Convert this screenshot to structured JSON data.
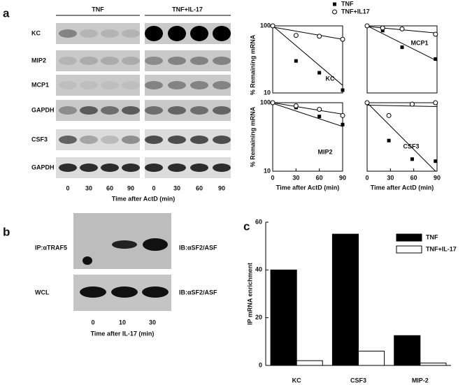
{
  "panel_labels": [
    "a",
    "b",
    "c"
  ],
  "blot_a": {
    "groups": [
      "TNF",
      "TNF+IL-17"
    ],
    "rows": [
      "KC",
      "MIP2",
      "MCP1",
      "GAPDH",
      "CSF3",
      "GAPDH"
    ],
    "lanes": [
      "0",
      "30",
      "60",
      "90",
      "0",
      "30",
      "60",
      "90"
    ],
    "xlabel": "Time after ActD (min)"
  },
  "blot_b": {
    "left_labels": [
      "IP:αTRAF5",
      "WCL"
    ],
    "right_labels": [
      "IB:αSF2/ASF",
      "IB:αSF2/ASF"
    ],
    "lanes": [
      "0",
      "10",
      "30"
    ],
    "xlabel": "Time after IL-17 (min)"
  },
  "chart_data": [
    {
      "type": "scatter",
      "log_y": true,
      "legend": "top",
      "annotation": "KC",
      "ylabel": "% Remaining mRNA",
      "xlim": [
        0,
        90
      ],
      "ylim": [
        10,
        100
      ],
      "yticks": [
        10,
        100
      ],
      "series": [
        {
          "name": "TNF",
          "color": "#000000",
          "marker": "filled-square",
          "x": [
            0,
            30,
            60,
            90
          ],
          "values": [
            100,
            30,
            20,
            11
          ],
          "fit": [
            100,
            13
          ]
        },
        {
          "name": "TNF+IL17",
          "color": "#000000",
          "marker": "open-circle",
          "x": [
            0,
            30,
            60,
            90
          ],
          "values": [
            100,
            72,
            70,
            63
          ],
          "fit": [
            96,
            63
          ]
        }
      ]
    },
    {
      "type": "scatter",
      "log_y": true,
      "annotation": "MCP1",
      "xlim": [
        0,
        90
      ],
      "ylim": [
        10,
        100
      ],
      "series": [
        {
          "color": "#000000",
          "marker": "filled-square",
          "x": [
            0,
            20,
            45,
            88
          ],
          "values": [
            100,
            85,
            48,
            32
          ],
          "fit": [
            100,
            30
          ]
        },
        {
          "color": "#000000",
          "marker": "open-circle",
          "x": [
            0,
            20,
            45,
            88
          ],
          "values": [
            100,
            93,
            90,
            75
          ],
          "fit": [
            98,
            78
          ]
        }
      ]
    },
    {
      "type": "scatter",
      "log_y": true,
      "annotation": "MIP2",
      "ylabel": "% Remaining mRNA",
      "xlabel": "Time after ActD (min)",
      "xlim": [
        0,
        90
      ],
      "ylim": [
        10,
        100
      ],
      "yticks": [
        10,
        100
      ],
      "xticks": [
        0,
        30,
        60,
        90
      ],
      "series": [
        {
          "color": "#000000",
          "marker": "filled-square",
          "x": [
            0,
            30,
            60,
            90
          ],
          "values": [
            100,
            85,
            63,
            48
          ],
          "fit": [
            98,
            45
          ]
        },
        {
          "color": "#000000",
          "marker": "open-circle",
          "x": [
            0,
            30,
            60,
            90
          ],
          "values": [
            100,
            90,
            80,
            65
          ],
          "fit": [
            100,
            68
          ]
        }
      ]
    },
    {
      "type": "scatter",
      "log_y": true,
      "annotation": "CSF3",
      "xlabel": "Time after ActD (min)",
      "xlim": [
        0,
        90
      ],
      "ylim": [
        10,
        100
      ],
      "xticks": [
        0,
        30,
        60,
        90
      ],
      "series": [
        {
          "color": "#000000",
          "marker": "filled-square",
          "x": [
            0,
            28,
            58,
            88
          ],
          "values": [
            100,
            28,
            15,
            14
          ],
          "fit": [
            100,
            9.5
          ]
        },
        {
          "color": "#000000",
          "marker": "open-circle",
          "x": [
            0,
            28,
            58,
            88
          ],
          "values": [
            100,
            65,
            95,
            100
          ],
          "fit": [
            92,
            88
          ]
        }
      ]
    },
    {
      "type": "bar",
      "legend": "upper-right",
      "ylabel": "IP mRNA enrichment",
      "categories": [
        "KC",
        "CSF3",
        "MIP-2"
      ],
      "ylim": [
        0,
        60
      ],
      "yticks": [
        0,
        20,
        40,
        60
      ],
      "series": [
        {
          "name": "TNF",
          "color": "#000000",
          "values": [
            40,
            55,
            12.5
          ]
        },
        {
          "name": "TNF+IL-17",
          "color": "#ffffff",
          "values": [
            2,
            6,
            1
          ]
        }
      ]
    }
  ]
}
